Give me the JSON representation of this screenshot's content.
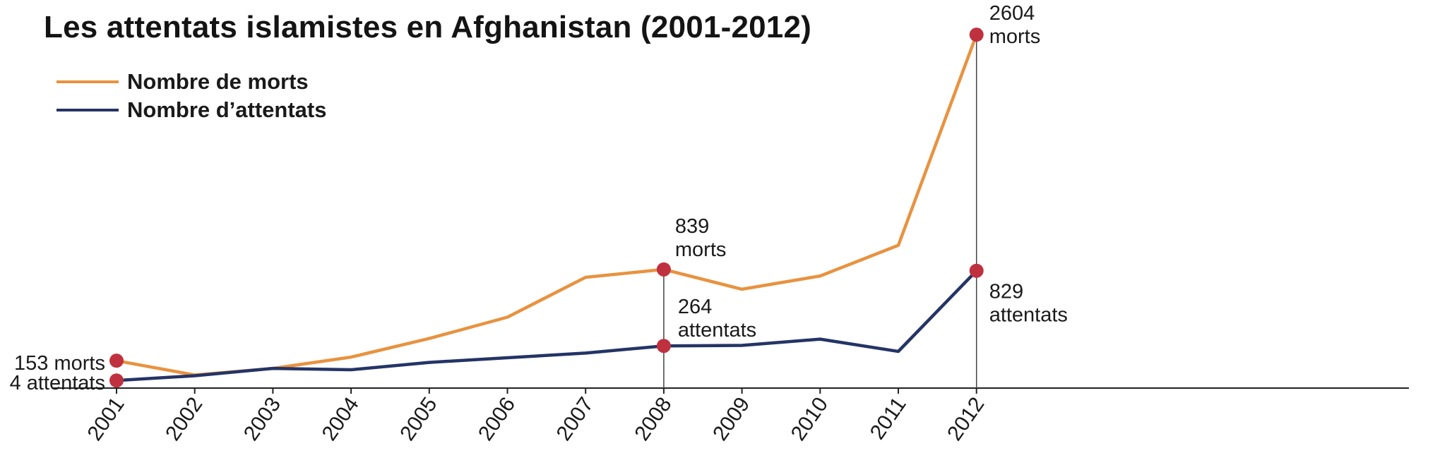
{
  "chart_data": {
    "type": "line",
    "title": "Les attentats islamistes en Afghanistan (2001-2012)",
    "x": [
      "2001",
      "2002",
      "2003",
      "2004",
      "2005",
      "2006",
      "2007",
      "2008",
      "2009",
      "2010",
      "2011",
      "2012"
    ],
    "series": [
      {
        "name": "Nombre de morts",
        "color": "#e8923f",
        "values": [
          153,
          45,
          95,
          180,
          320,
          480,
          780,
          839,
          690,
          790,
          1020,
          2604
        ]
      },
      {
        "name": "Nombre d’attentats",
        "color": "#243466",
        "values": [
          4,
          40,
          95,
          85,
          140,
          175,
          210,
          264,
          268,
          315,
          223,
          829
        ]
      }
    ],
    "ylim": [
      -40,
      2700
    ],
    "grid": false,
    "legend": "top-left",
    "marker_color": "#c0313f",
    "annotations": [
      {
        "x": "2001",
        "lines": [
          "153 morts"
        ]
      },
      {
        "x": "2001",
        "lines": [
          "4 attentats"
        ]
      },
      {
        "x": "2008",
        "lines": [
          "839",
          "morts"
        ]
      },
      {
        "x": "2008",
        "lines": [
          "264",
          "attentats"
        ]
      },
      {
        "x": "2012",
        "lines": [
          "2604",
          "morts"
        ]
      },
      {
        "x": "2012",
        "lines": [
          "829",
          "attentats"
        ]
      }
    ]
  }
}
